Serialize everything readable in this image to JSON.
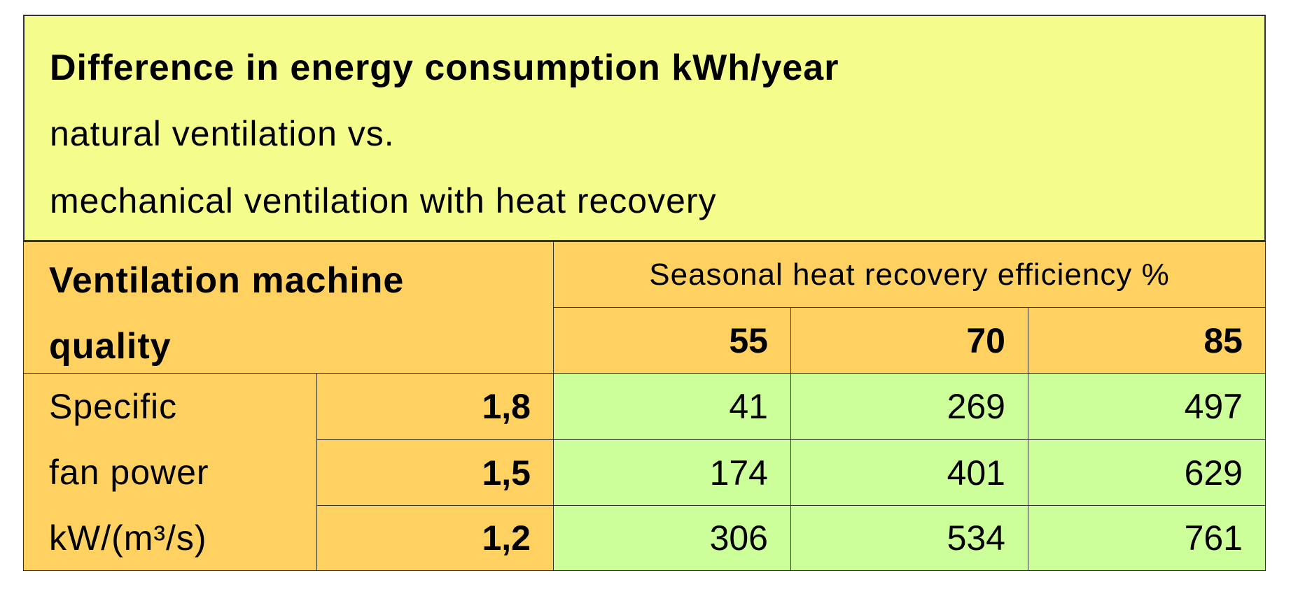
{
  "title": {
    "line1": "Difference in energy consumption kWh/year",
    "line2": "natural ventilation vs.",
    "line3": "mechanical ventilation with heat recovery"
  },
  "table": {
    "row_header": "Ventilation machine quality",
    "column_group_header": "Seasonal heat recovery efficiency %",
    "columns": [
      "55",
      "70",
      "85"
    ],
    "row_group_label": [
      "Specific",
      "fan power",
      "kW/(m³/s)"
    ],
    "rows": [
      {
        "sfp": "1,8",
        "values": [
          "41",
          "269",
          "497"
        ]
      },
      {
        "sfp": "1,5",
        "values": [
          "174",
          "401",
          "629"
        ]
      },
      {
        "sfp": "1,2",
        "values": [
          "306",
          "534",
          "761"
        ]
      }
    ]
  },
  "colors": {
    "title_bg": "#f4fc8c",
    "header_bg": "#ffd160",
    "data_bg": "#ccff99"
  }
}
